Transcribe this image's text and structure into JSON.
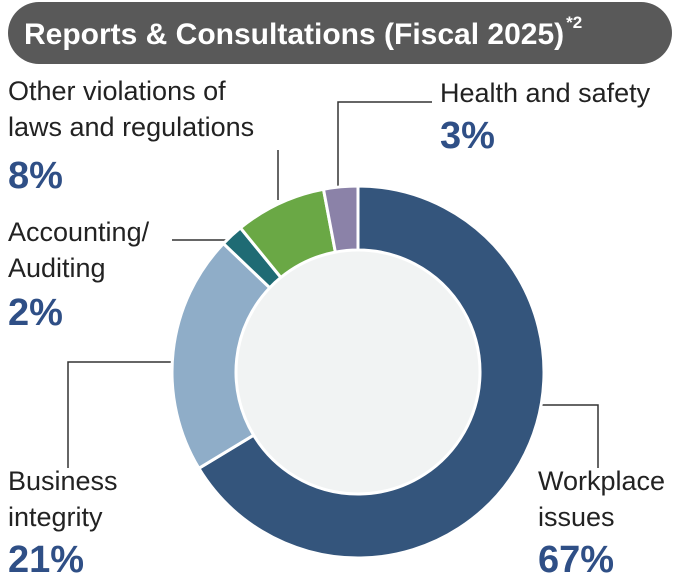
{
  "chart_data": {
    "type": "pie",
    "donut": true,
    "title": "Reports & Consultations (Fiscal 2025)",
    "title_note": "*2",
    "categories": [
      [
        "Workplace",
        "issues"
      ],
      [
        "Business",
        "integrity"
      ],
      [
        "Accounting/",
        "Auditing"
      ],
      [
        "Other violations of",
        "laws and regulations"
      ],
      [
        "Health and safety"
      ]
    ],
    "values": [
      67,
      21,
      2,
      8,
      3
    ],
    "value_labels": [
      "67%",
      "21%",
      "2%",
      "8%",
      "3%"
    ],
    "colors": [
      "#34557c",
      "#8fadc8",
      "#1f6b74",
      "#6aa845",
      "#8b82a8"
    ]
  }
}
